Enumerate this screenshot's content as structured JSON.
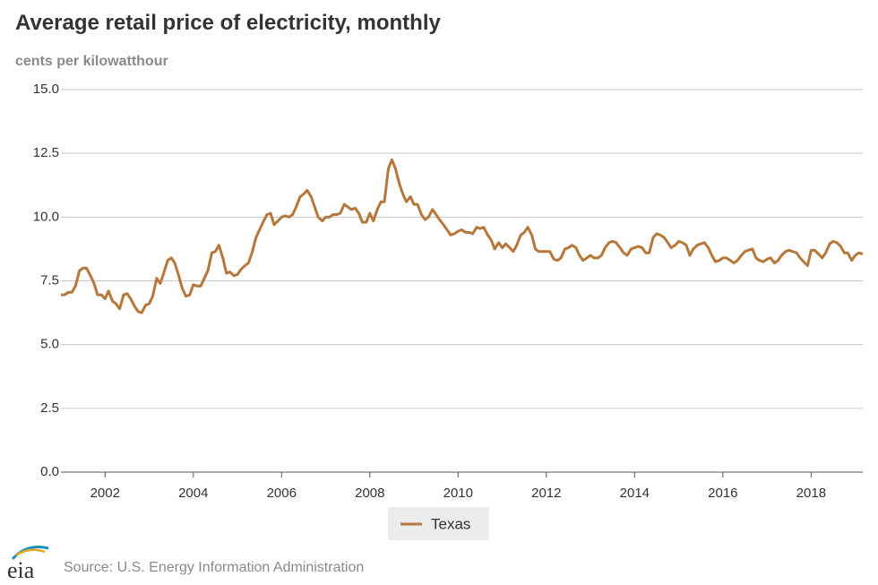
{
  "chart_data": {
    "type": "line",
    "title": "Average retail price of electricity, monthly",
    "subtitle": "cents per kilowatthour",
    "source": "Source: U.S. Energy Information Administration",
    "logo": "eia",
    "xlim": [
      2001,
      2019.17
    ],
    "xticks": [
      2002,
      2004,
      2006,
      2008,
      2010,
      2012,
      2014,
      2016,
      2018
    ],
    "ylim": [
      0,
      15
    ],
    "yticks": [
      {
        "value": 0,
        "label": "0.0"
      },
      2.5,
      {
        "value": 5,
        "label": "5.0"
      },
      7.5,
      {
        "value": 10,
        "label": "10.0"
      },
      12.5,
      {
        "value": 15,
        "label": "15.0"
      }
    ],
    "grid": true,
    "legend": "bottom",
    "x": [
      2001,
      2001.08,
      2001.17,
      2001.25,
      2001.33,
      2001.42,
      2001.5,
      2001.58,
      2001.67,
      2001.75,
      2001.83,
      2001.92,
      2002,
      2002.08,
      2002.17,
      2002.25,
      2002.33,
      2002.42,
      2002.5,
      2002.58,
      2002.67,
      2002.75,
      2002.83,
      2002.92,
      2003,
      2003.08,
      2003.17,
      2003.25,
      2003.33,
      2003.42,
      2003.5,
      2003.58,
      2003.67,
      2003.75,
      2003.83,
      2003.92,
      2004,
      2004.08,
      2004.17,
      2004.25,
      2004.33,
      2004.42,
      2004.5,
      2004.58,
      2004.67,
      2004.75,
      2004.83,
      2004.92,
      2005,
      2005.08,
      2005.17,
      2005.25,
      2005.33,
      2005.42,
      2005.5,
      2005.58,
      2005.67,
      2005.75,
      2005.83,
      2005.92,
      2006,
      2006.08,
      2006.17,
      2006.25,
      2006.33,
      2006.42,
      2006.5,
      2006.58,
      2006.67,
      2006.75,
      2006.83,
      2006.92,
      2007,
      2007.08,
      2007.17,
      2007.25,
      2007.33,
      2007.42,
      2007.5,
      2007.58,
      2007.67,
      2007.75,
      2007.83,
      2007.92,
      2008,
      2008.08,
      2008.17,
      2008.25,
      2008.33,
      2008.42,
      2008.5,
      2008.58,
      2008.67,
      2008.75,
      2008.83,
      2008.92,
      2009,
      2009.08,
      2009.17,
      2009.25,
      2009.33,
      2009.42,
      2009.5,
      2009.58,
      2009.67,
      2009.75,
      2009.83,
      2009.92,
      2010,
      2010.08,
      2010.17,
      2010.25,
      2010.33,
      2010.42,
      2010.5,
      2010.58,
      2010.67,
      2010.75,
      2010.83,
      2010.92,
      2011,
      2011.08,
      2011.17,
      2011.25,
      2011.33,
      2011.42,
      2011.5,
      2011.58,
      2011.67,
      2011.75,
      2011.83,
      2011.92,
      2012,
      2012.08,
      2012.17,
      2012.25,
      2012.33,
      2012.42,
      2012.5,
      2012.58,
      2012.67,
      2012.75,
      2012.83,
      2012.92,
      2013,
      2013.08,
      2013.17,
      2013.25,
      2013.33,
      2013.42,
      2013.5,
      2013.58,
      2013.67,
      2013.75,
      2013.83,
      2013.92,
      2014,
      2014.08,
      2014.17,
      2014.25,
      2014.33,
      2014.42,
      2014.5,
      2014.58,
      2014.67,
      2014.75,
      2014.83,
      2014.92,
      2015,
      2015.08,
      2015.17,
      2015.25,
      2015.33,
      2015.42,
      2015.5,
      2015.58,
      2015.67,
      2015.75,
      2015.83,
      2015.92,
      2016,
      2016.08,
      2016.17,
      2016.25,
      2016.33,
      2016.42,
      2016.5,
      2016.58,
      2016.67,
      2016.75,
      2016.83,
      2016.92,
      2017,
      2017.08,
      2017.17,
      2017.25,
      2017.33,
      2017.42,
      2017.5,
      2017.58,
      2017.67,
      2017.75,
      2017.83,
      2017.92,
      2018,
      2018.08,
      2018.17,
      2018.25,
      2018.33,
      2018.42,
      2018.5,
      2018.58,
      2018.67,
      2018.75,
      2018.83,
      2018.92,
      2019,
      2019.08,
      2019.17
    ],
    "series": [
      {
        "name": "Texas",
        "color": "#b5773a",
        "values": [
          6.95,
          6.95,
          7.05,
          7.05,
          7.3,
          7.9,
          8.0,
          8.0,
          7.7,
          7.4,
          6.95,
          6.95,
          6.8,
          7.1,
          6.7,
          6.6,
          6.4,
          6.95,
          7.0,
          6.8,
          6.5,
          6.3,
          6.25,
          6.55,
          6.6,
          6.9,
          7.6,
          7.4,
          7.8,
          8.3,
          8.4,
          8.2,
          7.7,
          7.2,
          6.9,
          6.95,
          7.35,
          7.3,
          7.3,
          7.6,
          7.9,
          8.6,
          8.65,
          8.9,
          8.4,
          7.8,
          7.85,
          7.7,
          7.75,
          7.95,
          8.1,
          8.2,
          8.6,
          9.2,
          9.5,
          9.8,
          10.1,
          10.15,
          9.7,
          9.85,
          10.0,
          10.05,
          10.0,
          10.1,
          10.4,
          10.8,
          10.9,
          11.05,
          10.8,
          10.4,
          10.0,
          9.85,
          10.0,
          10.0,
          10.1,
          10.1,
          10.15,
          10.5,
          10.4,
          10.3,
          10.35,
          10.15,
          9.8,
          9.8,
          10.15,
          9.85,
          10.3,
          10.6,
          10.6,
          11.9,
          12.25,
          11.9,
          11.3,
          10.9,
          10.6,
          10.8,
          10.5,
          10.5,
          10.1,
          9.9,
          10.0,
          10.3,
          10.1,
          9.9,
          9.7,
          9.5,
          9.3,
          9.35,
          9.45,
          9.5,
          9.4,
          9.4,
          9.35,
          9.6,
          9.55,
          9.6,
          9.3,
          9.1,
          8.75,
          9.0,
          8.8,
          8.95,
          8.8,
          8.65,
          8.9,
          9.3,
          9.4,
          9.6,
          9.3,
          8.75,
          8.65,
          8.65,
          8.65,
          8.65,
          8.35,
          8.3,
          8.4,
          8.75,
          8.8,
          8.9,
          8.8,
          8.5,
          8.3,
          8.4,
          8.5,
          8.4,
          8.4,
          8.5,
          8.8,
          9.0,
          9.05,
          9.0,
          8.8,
          8.6,
          8.5,
          8.75,
          8.8,
          8.85,
          8.8,
          8.6,
          8.6,
          9.2,
          9.35,
          9.3,
          9.2,
          9.0,
          8.8,
          8.9,
          9.05,
          9.0,
          8.9,
          8.5,
          8.75,
          8.9,
          8.95,
          9.0,
          8.8,
          8.5,
          8.25,
          8.3,
          8.4,
          8.4,
          8.3,
          8.2,
          8.3,
          8.5,
          8.65,
          8.7,
          8.75,
          8.4,
          8.3,
          8.25,
          8.35,
          8.4,
          8.2,
          8.3,
          8.5,
          8.65,
          8.7,
          8.65,
          8.6,
          8.4,
          8.25,
          8.1,
          8.7,
          8.7,
          8.55,
          8.4,
          8.6,
          8.95,
          9.05,
          9.0,
          8.85,
          8.6,
          8.6,
          8.3,
          8.5,
          8.6,
          8.55
        ]
      }
    ]
  }
}
